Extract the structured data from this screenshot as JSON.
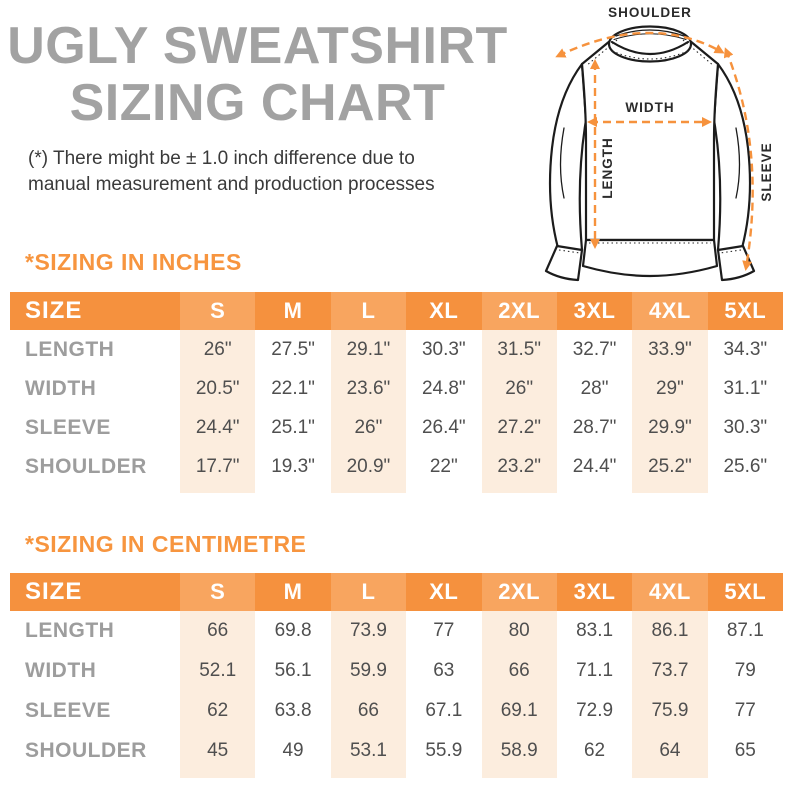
{
  "header": {
    "title_line1": "UGLY SWEATSHIRT",
    "title_line2": "SIZING CHART",
    "disclaimer_line1": "(*) There might be ± 1.0 inch difference due to",
    "disclaimer_line2": "manual measurement and production processes"
  },
  "diagram": {
    "shoulder_label": "SHOULDER",
    "width_label": "WIDTH",
    "length_label": "LENGTH",
    "sleeve_label": "SLEEVE"
  },
  "colors": {
    "accent_orange": "#F5913E",
    "accent_orange_light": "#F8A55F",
    "highlight_peach": "#FCEDDE",
    "heading_orange": "#F7953F",
    "title_gray": "#A2A2A2",
    "row_label_gray": "#9D9D9D",
    "value_gray": "#4F4F4F",
    "arrow_orange": "#F6923D"
  },
  "sections": [
    {
      "heading": "*SIZING IN INCHES",
      "table": {
        "header": [
          "SIZE",
          "S",
          "M",
          "L",
          "XL",
          "2XL",
          "3XL",
          "4XL",
          "5XL"
        ],
        "highlighted_columns": [
          "S",
          "L",
          "2XL",
          "4XL"
        ],
        "rows": [
          {
            "label": "LENGTH",
            "values": [
              "26\"",
              "27.5\"",
              "29.1\"",
              "30.3\"",
              "31.5\"",
              "32.7\"",
              "33.9\"",
              "34.3\""
            ]
          },
          {
            "label": "WIDTH",
            "values": [
              "20.5\"",
              "22.1\"",
              "23.6\"",
              "24.8\"",
              "26\"",
              "28\"",
              "29\"",
              "31.1\""
            ]
          },
          {
            "label": "SLEEVE",
            "values": [
              "24.4\"",
              "25.1\"",
              "26\"",
              "26.4\"",
              "27.2\"",
              "28.7\"",
              "29.9\"",
              "30.3\""
            ]
          },
          {
            "label": "SHOULDER",
            "values": [
              "17.7\"",
              "19.3\"",
              "20.9\"",
              "22\"",
              "23.2\"",
              "24.4\"",
              "25.2\"",
              "25.6\""
            ]
          }
        ]
      }
    },
    {
      "heading": "*SIZING IN CENTIMETRE",
      "table": {
        "header": [
          "SIZE",
          "S",
          "M",
          "L",
          "XL",
          "2XL",
          "3XL",
          "4XL",
          "5XL"
        ],
        "highlighted_columns": [
          "S",
          "L",
          "2XL",
          "4XL"
        ],
        "rows": [
          {
            "label": "LENGTH",
            "values": [
              "66",
              "69.8",
              "73.9",
              "77",
              "80",
              "83.1",
              "86.1",
              "87.1"
            ]
          },
          {
            "label": "WIDTH",
            "values": [
              "52.1",
              "56.1",
              "59.9",
              "63",
              "66",
              "71.1",
              "73.7",
              "79"
            ]
          },
          {
            "label": "SLEEVE",
            "values": [
              "62",
              "63.8",
              "66",
              "67.1",
              "69.1",
              "72.9",
              "75.9",
              "77"
            ]
          },
          {
            "label": "SHOULDER",
            "values": [
              "45",
              "49",
              "53.1",
              "55.9",
              "58.9",
              "62",
              "64",
              "65"
            ]
          }
        ]
      }
    }
  ]
}
